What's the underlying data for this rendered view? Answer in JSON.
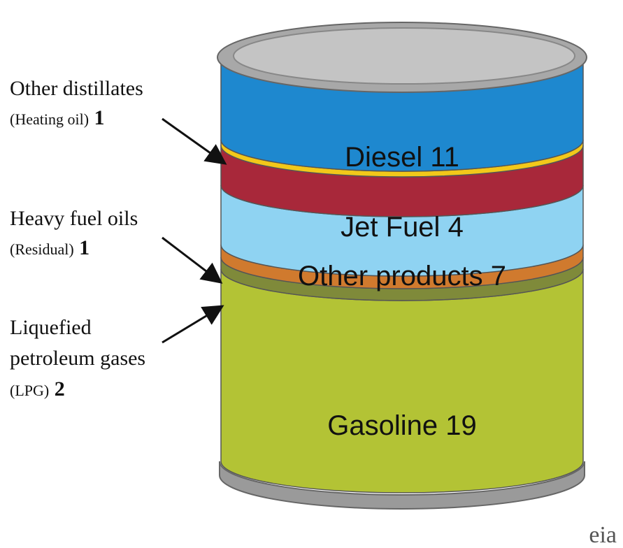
{
  "bands": [
    {
      "label": "Diesel",
      "value": 11
    },
    {
      "label": "Jet Fuel",
      "value": 4
    },
    {
      "label": "Other products",
      "value": 7
    },
    {
      "label": "Gasoline",
      "value": 19
    }
  ],
  "callouts": [
    {
      "lines": [
        "Other distillates"
      ],
      "note": "(Heating oil)",
      "value": 1
    },
    {
      "lines": [
        "Heavy fuel oils"
      ],
      "note": "(Residual)",
      "value": 1
    },
    {
      "lines": [
        "Liquefied",
        "petroleum gases"
      ],
      "note": "(LPG)",
      "value": 2
    }
  ],
  "logo": "eia"
}
